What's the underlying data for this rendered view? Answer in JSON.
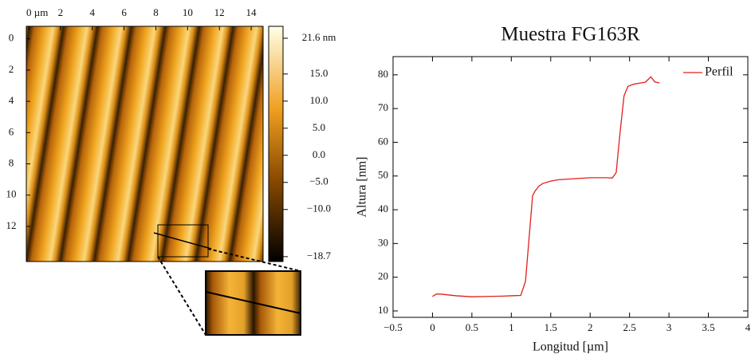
{
  "chart_data": [
    {
      "type": "image",
      "xlim": [
        -0.15,
        14.75
      ],
      "xticks": [
        {
          "value": 0,
          "label": "0 µm"
        },
        2,
        4,
        6,
        8,
        10,
        12,
        14
      ],
      "ylim": [
        -0.8,
        14.25
      ],
      "yticks": [
        0,
        2,
        4,
        6,
        8,
        10,
        12
      ],
      "clim": [
        -19.6,
        23.8
      ],
      "cticks": [
        {
          "value": 21.6,
          "label": "21.6 nm"
        },
        {
          "value": 15,
          "label": "15.0"
        },
        {
          "value": 10,
          "label": "10.0"
        },
        {
          "value": 5,
          "label": "5.0"
        },
        {
          "value": 0,
          "label": "0.0"
        },
        {
          "value": -5,
          "label": "−5.0"
        },
        {
          "value": -10,
          "label": "−10.0"
        },
        {
          "value": -18.7,
          "label": "−18.7"
        }
      ]
    },
    {
      "type": "line",
      "title": "Muestra FG163R",
      "xlabel": "Longitud [µm]",
      "ylabel": "Altura [nm]",
      "x": [
        0,
        0.05,
        0.1,
        0.3,
        0.5,
        0.7,
        0.9,
        1.0,
        1.12,
        1.18,
        1.22,
        1.27,
        1.3,
        1.35,
        1.4,
        1.5,
        1.6,
        1.8,
        2.0,
        2.2,
        2.28,
        2.33,
        2.38,
        2.43,
        2.48,
        2.55,
        2.62,
        2.7,
        2.77,
        2.82,
        2.88
      ],
      "series": [
        {
          "name": "Perfil",
          "color": "#e0201b",
          "values": [
            14.3,
            15.0,
            15.0,
            14.5,
            14.2,
            14.3,
            14.4,
            14.5,
            14.6,
            18.8,
            30,
            44.2,
            45.5,
            47,
            47.8,
            48.5,
            48.9,
            49.2,
            49.5,
            49.5,
            49.4,
            51,
            63,
            73.8,
            76.6,
            77.2,
            77.5,
            77.8,
            79.4,
            77.9,
            77.6
          ]
        }
      ],
      "xlim": [
        -0.5,
        4
      ],
      "xticks": [
        {
          "value": -0.5,
          "label": "−0.5"
        },
        0,
        0.5,
        1,
        1.5,
        2,
        2.5,
        3,
        3.5,
        4
      ],
      "ylim": [
        8.1,
        85.4
      ],
      "yticks": [
        10,
        20,
        30,
        40,
        50,
        60,
        70,
        80
      ],
      "legend": "upper right"
    }
  ]
}
